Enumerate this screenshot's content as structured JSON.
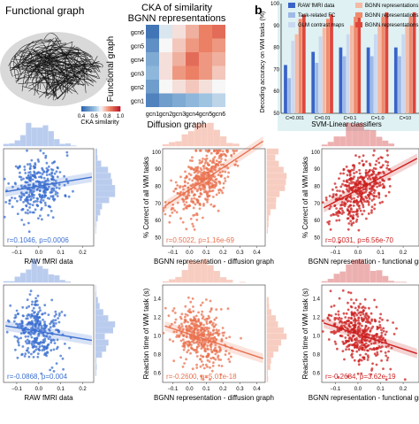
{
  "panels": {
    "functional_graph_title": "Functional graph",
    "panel_b_label": "b"
  },
  "colors": {
    "blue_dark": "#3a63c8",
    "blue_light": "#9fb9e6",
    "blue_pale": "#c9d8f1",
    "salmon": "#f08a6b",
    "red": "#e0463a",
    "red_dark": "#c0202a",
    "red_pale": "#f5b9a5",
    "scatter_blue": "#3b6fd0",
    "scatter_salmon": "#e9714f",
    "scatter_red": "#cc1f1f"
  },
  "chart_data": [
    {
      "id": "cka-heatmap",
      "type": "heatmap",
      "title": "CKA of similarity",
      "subtitle": "BGNN representations",
      "xlabel": "Diffusion graph",
      "ylabel": "Functional graph",
      "x_categories": [
        "gcn1",
        "gcn2",
        "gcn3",
        "gcn4",
        "gcn5",
        "gcn6"
      ],
      "y_categories": [
        "gcn6",
        "gcn5",
        "gcn4",
        "gcn3",
        "gcn2",
        "gcn1"
      ],
      "values": [
        [
          0.05,
          0.45,
          0.55,
          0.65,
          0.75,
          0.8
        ],
        [
          0.15,
          0.5,
          0.6,
          0.7,
          0.75,
          0.7
        ],
        [
          0.25,
          0.55,
          0.65,
          0.8,
          0.7,
          0.65
        ],
        [
          0.3,
          0.55,
          0.7,
          0.75,
          0.7,
          0.6
        ],
        [
          0.2,
          0.5,
          0.55,
          0.6,
          0.55,
          0.5
        ],
        [
          0.1,
          0.2,
          0.25,
          0.3,
          0.35,
          0.4
        ]
      ],
      "colorbar_label": "CKA similarity",
      "colorbar_ticks": [
        "0.4",
        "0.6",
        "0.8",
        "1.0"
      ]
    },
    {
      "id": "svm-bars",
      "type": "bar",
      "ylabel": "Decoding accuracy on WM tasks (%)",
      "xlabel": "SVM-Linear classifiers",
      "categories": [
        "C=0.001",
        "C=0.01",
        "C=0.1",
        "C=1.0",
        "C=10"
      ],
      "y_ticks": [
        "50",
        "60",
        "70",
        "80",
        "90",
        "100"
      ],
      "ylim": [
        50,
        100
      ],
      "series": [
        {
          "name": "RAW fMRI data",
          "values": [
            72,
            78,
            80,
            80,
            80
          ]
        },
        {
          "name": "Task-related FC",
          "values": [
            66,
            73,
            76,
            76,
            76
          ]
        },
        {
          "name": "GLM contrast maps",
          "values": [
            83,
            85,
            86,
            86,
            86
          ]
        },
        {
          "name": "BGNN representations (randu",
          "values": [
            86,
            89,
            90,
            90,
            90
          ]
        },
        {
          "name": "BGNN representations (diffus",
          "values": [
            93,
            93,
            94,
            94,
            94
          ]
        },
        {
          "name": "BGNN representations (functi",
          "values": [
            95,
            95,
            96,
            96,
            96
          ]
        }
      ]
    },
    {
      "id": "scatter-raw-acc",
      "type": "scatter",
      "xlabel": "RAW fMRI data",
      "annotation": "r=0.1046, p=0.0006",
      "x_ticks": [
        "−0.1",
        "0.0",
        "0.1",
        "0.2"
      ],
      "xlim": [
        -0.16,
        0.25
      ],
      "ylim": [
        40,
        105
      ],
      "fit": {
        "slope": 25,
        "intercept": 80
      },
      "n": 320,
      "seed": 11
    },
    {
      "id": "scatter-diff-acc",
      "type": "scatter",
      "xlabel": "BGNN representation - diffusion graph",
      "ylabel": "% Correct of all WM tasks",
      "annotation": "r=0.5022, p=1.16e-69",
      "x_ticks": [
        "−0.1",
        "0.0",
        "0.1",
        "0.2",
        "0.3",
        "0.4"
      ],
      "y_ticks": [
        "50",
        "60",
        "70",
        "80",
        "90",
        "100"
      ],
      "xlim": [
        -0.16,
        0.45
      ],
      "ylim": [
        45,
        102
      ],
      "fit": {
        "slope": 65,
        "intercept": 78
      },
      "n": 420,
      "seed": 23
    },
    {
      "id": "scatter-func-acc",
      "type": "scatter",
      "xlabel": "BGNN representation - functional graph",
      "ylabel": "% Correct of all WM tasks",
      "annotation": "r=0.5031, p=6.56e-70",
      "x_ticks": [
        "−0.1",
        "0.0",
        "0.1",
        "0.2"
      ],
      "y_ticks": [
        "50",
        "60",
        "70",
        "80",
        "90",
        "100"
      ],
      "xlim": [
        -0.16,
        0.27
      ],
      "ylim": [
        45,
        102
      ],
      "fit": {
        "slope": 70,
        "intercept": 78
      },
      "n": 420,
      "seed": 37
    },
    {
      "id": "scatter-raw-rt",
      "type": "scatter",
      "xlabel": "RAW fMRI data",
      "annotation": "r=-0.0868, p=0.004",
      "x_ticks": [
        "−0.1",
        "0.0",
        "0.1",
        "0.2"
      ],
      "xlim": [
        -0.16,
        0.25
      ],
      "ylim": [
        0.5,
        1.55
      ],
      "fit": {
        "slope": -0.4,
        "intercept": 1.05
      },
      "n": 320,
      "seed": 41
    },
    {
      "id": "scatter-diff-rt",
      "type": "scatter",
      "xlabel": "BGNN representation - diffusion graph",
      "ylabel": "Reaction time of WM task (s)",
      "annotation": "r=-0.2600, p=5.01e-18",
      "x_ticks": [
        "−0.1",
        "0.0",
        "0.1",
        "0.2",
        "0.3",
        "0.4"
      ],
      "y_ticks": [
        "0.6",
        "0.8",
        "1.0",
        "1.2",
        "1.4"
      ],
      "xlim": [
        -0.16,
        0.45
      ],
      "ylim": [
        0.5,
        1.55
      ],
      "fit": {
        "slope": -0.6,
        "intercept": 1.02
      },
      "n": 420,
      "seed": 53
    },
    {
      "id": "scatter-func-rt",
      "type": "scatter",
      "xlabel": "BGNN representation - functional graph",
      "ylabel": "Reaction time of WM task (s)",
      "annotation": "r=-0.2684, p=3.62e-19",
      "x_ticks": [
        "−0.1",
        "0.0",
        "0.1",
        "0.2"
      ],
      "y_ticks": [
        "0.6",
        "0.8",
        "1.0",
        "1.2",
        "1.4"
      ],
      "xlim": [
        -0.16,
        0.27
      ],
      "ylim": [
        0.5,
        1.55
      ],
      "fit": {
        "slope": -0.8,
        "intercept": 1.02
      },
      "n": 420,
      "seed": 67
    }
  ]
}
